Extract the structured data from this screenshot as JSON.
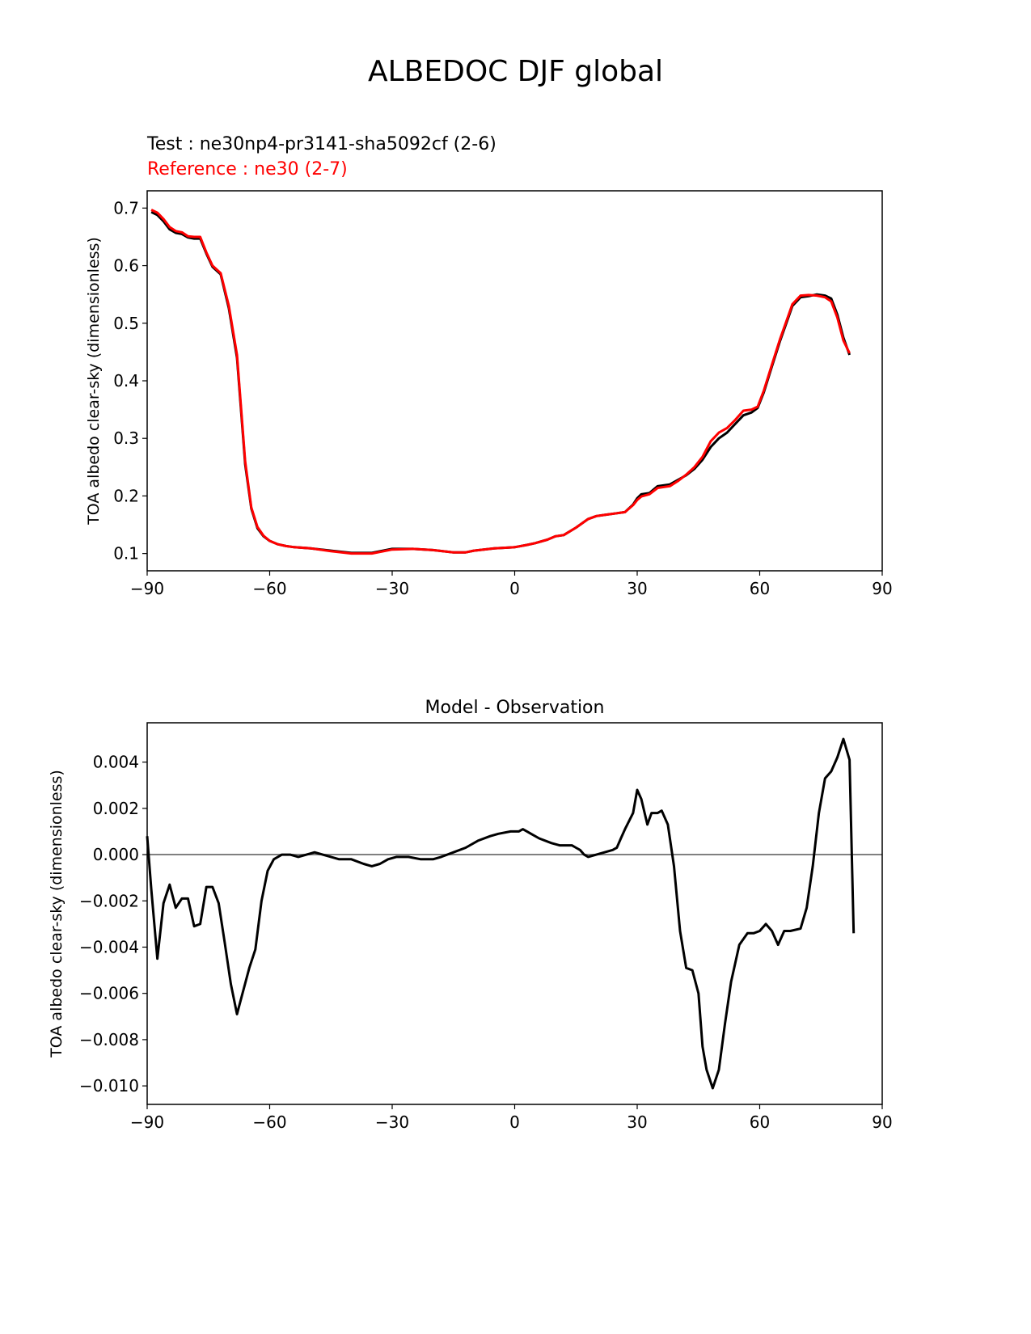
{
  "figure": {
    "title": "ALBEDOC DJF global",
    "test_label": "Test : ne30np4-pr3141-sha5092cf (2-6)",
    "reference_label": "Reference : ne30 (2-7)"
  },
  "colors": {
    "test": "#000000",
    "reference": "#ff0000",
    "zero_line": "#808080"
  },
  "chart_data": [
    {
      "type": "line",
      "title": "",
      "xlabel": "",
      "ylabel": "TOA albedo clear-sky (dimensionless)",
      "xlim": [
        -90,
        90
      ],
      "ylim": [
        0.07,
        0.73
      ],
      "xticks": [
        -90,
        -60,
        -30,
        0,
        30,
        60,
        90
      ],
      "xtick_labels": [
        "−90",
        "−60",
        "−30",
        "0",
        "30",
        "60",
        "90"
      ],
      "yticks": [
        0.1,
        0.2,
        0.3,
        0.4,
        0.5,
        0.6,
        0.7
      ],
      "ytick_labels": [
        "0.1",
        "0.2",
        "0.3",
        "0.4",
        "0.5",
        "0.6",
        "0.7"
      ],
      "series": [
        {
          "color": "#000000",
          "x": [
            -89,
            -87.5,
            -86,
            -84.5,
            -83,
            -81.5,
            -80,
            -78.5,
            -77,
            -75.5,
            -74,
            -72,
            -70,
            -68,
            -66,
            -64.5,
            -63,
            -61.5,
            -60,
            -58,
            -56,
            -54,
            -50,
            -45,
            -40,
            -35,
            -30,
            -25,
            -20,
            -15,
            -12,
            -10,
            -5,
            0,
            3,
            5,
            8,
            10,
            12,
            15,
            18,
            20,
            22,
            25,
            27,
            29,
            30,
            31,
            33,
            35,
            38,
            40,
            42,
            44,
            46,
            48,
            50,
            52,
            54,
            56,
            58,
            59.5,
            61,
            63,
            65,
            67,
            68,
            70,
            72,
            74,
            76,
            77.5,
            79,
            80.5,
            82
          ],
          "y": [
            0.693,
            0.688,
            0.677,
            0.663,
            0.657,
            0.655,
            0.649,
            0.647,
            0.647,
            0.621,
            0.598,
            0.585,
            0.526,
            0.44,
            0.255,
            0.178,
            0.144,
            0.13,
            0.122,
            0.116,
            0.113,
            0.111,
            0.109,
            0.105,
            0.101,
            0.101,
            0.108,
            0.108,
            0.106,
            0.102,
            0.102,
            0.105,
            0.109,
            0.111,
            0.115,
            0.118,
            0.124,
            0.13,
            0.132,
            0.145,
            0.16,
            0.165,
            0.167,
            0.17,
            0.172,
            0.185,
            0.196,
            0.203,
            0.205,
            0.217,
            0.22,
            0.228,
            0.236,
            0.247,
            0.263,
            0.285,
            0.3,
            0.31,
            0.325,
            0.34,
            0.345,
            0.353,
            0.38,
            0.425,
            0.47,
            0.51,
            0.53,
            0.545,
            0.547,
            0.55,
            0.548,
            0.543,
            0.515,
            0.475,
            0.445
          ]
        },
        {
          "color": "#ff0000",
          "x": [
            -89,
            -87.5,
            -86,
            -84.5,
            -83,
            -81.5,
            -80,
            -78.5,
            -77,
            -75.5,
            -74,
            -72,
            -70,
            -68,
            -66,
            -64.5,
            -63,
            -61.5,
            -60,
            -58,
            -56,
            -54,
            -50,
            -45,
            -40,
            -35,
            -30,
            -25,
            -20,
            -15,
            -12,
            -10,
            -5,
            0,
            3,
            5,
            8,
            10,
            12,
            15,
            18,
            20,
            22,
            25,
            27,
            29,
            30,
            31,
            33,
            35,
            38,
            40,
            42,
            44,
            46,
            48,
            50,
            52,
            54,
            56,
            58,
            59.5,
            61,
            63,
            65,
            67,
            68,
            70,
            72,
            74,
            76,
            77.5,
            79,
            80.5,
            82
          ],
          "y": [
            0.697,
            0.692,
            0.681,
            0.667,
            0.66,
            0.658,
            0.651,
            0.65,
            0.65,
            0.623,
            0.6,
            0.587,
            0.53,
            0.445,
            0.26,
            0.18,
            0.146,
            0.131,
            0.122,
            0.116,
            0.113,
            0.111,
            0.109,
            0.104,
            0.1,
            0.1,
            0.107,
            0.108,
            0.106,
            0.102,
            0.102,
            0.105,
            0.109,
            0.111,
            0.115,
            0.118,
            0.124,
            0.13,
            0.132,
            0.145,
            0.16,
            0.165,
            0.167,
            0.17,
            0.172,
            0.184,
            0.193,
            0.199,
            0.203,
            0.214,
            0.217,
            0.226,
            0.237,
            0.25,
            0.268,
            0.295,
            0.31,
            0.318,
            0.332,
            0.348,
            0.35,
            0.355,
            0.383,
            0.428,
            0.473,
            0.513,
            0.533,
            0.548,
            0.549,
            0.548,
            0.545,
            0.538,
            0.51,
            0.47,
            0.448
          ]
        }
      ]
    },
    {
      "type": "line",
      "title": "Model - Observation",
      "xlabel": "",
      "ylabel": "TOA albedo clear-sky (dimensionless)",
      "xlim": [
        -90,
        90
      ],
      "ylim": [
        -0.0108,
        0.0057
      ],
      "xticks": [
        -90,
        -60,
        -30,
        0,
        30,
        60,
        90
      ],
      "xtick_labels": [
        "−90",
        "−60",
        "−30",
        "0",
        "30",
        "60",
        "90"
      ],
      "yticks": [
        0.004,
        0.002,
        0.0,
        -0.002,
        -0.004,
        -0.006,
        -0.008,
        -0.01
      ],
      "ytick_labels": [
        "0.004",
        "0.002",
        "0.000",
        "−0.002",
        "−0.004",
        "−0.006",
        "−0.008",
        "−0.010"
      ],
      "reference_line_y": 0.0,
      "series": [
        {
          "color": "#000000",
          "x": [
            -90,
            -89,
            -87.5,
            -86,
            -84.5,
            -83,
            -81.5,
            -80,
            -78.5,
            -77,
            -75.5,
            -74,
            -72.5,
            -71,
            -69.5,
            -68,
            -66.5,
            -65,
            -63.5,
            -62,
            -60.5,
            -59,
            -57,
            -55,
            -53,
            -51,
            -49,
            -47,
            -45,
            -43,
            -40,
            -37,
            -35,
            -33,
            -31,
            -29,
            -26,
            -23,
            -20,
            -18,
            -15,
            -12,
            -9,
            -6,
            -4,
            -1,
            1,
            2,
            3,
            4,
            6,
            9,
            11,
            13,
            14,
            15,
            16,
            17,
            18,
            20,
            22,
            24,
            25,
            26,
            27,
            29,
            30,
            31,
            32.5,
            33.5,
            35,
            36,
            37.5,
            39,
            40.5,
            42,
            43.5,
            45,
            46,
            47,
            48.5,
            50,
            51.5,
            53,
            55,
            57,
            58.5,
            60,
            61.5,
            63,
            64.5,
            66,
            67.5,
            70,
            71.5,
            73,
            74.5,
            76,
            77.5,
            79,
            80.5,
            82,
            83
          ],
          "y": [
            0.0008,
            -0.0015,
            -0.0045,
            -0.0021,
            -0.0013,
            -0.0023,
            -0.0019,
            -0.0019,
            -0.0031,
            -0.003,
            -0.0014,
            -0.0014,
            -0.0021,
            -0.0038,
            -0.0056,
            -0.0069,
            -0.0059,
            -0.0049,
            -0.0041,
            -0.002,
            -0.0007,
            -0.0002,
            0.0,
            0.0,
            -0.0001,
            0.0,
            0.0001,
            0.0,
            -0.0001,
            -0.0002,
            -0.0002,
            -0.0004,
            -0.0005,
            -0.0004,
            -0.0002,
            -0.0001,
            -0.0001,
            -0.0002,
            -0.0002,
            -0.0001,
            0.0001,
            0.0003,
            0.0006,
            0.0008,
            0.0009,
            0.001,
            0.001,
            0.0011,
            0.001,
            0.0009,
            0.0007,
            0.0005,
            0.0004,
            0.0004,
            0.0004,
            0.0003,
            0.0002,
            0.0,
            -0.0001,
            0.0,
            0.0001,
            0.0002,
            0.0003,
            0.0007,
            0.0011,
            0.0018,
            0.0028,
            0.0024,
            0.0013,
            0.0018,
            0.0018,
            0.0019,
            0.0013,
            -0.0005,
            -0.0033,
            -0.0049,
            -0.005,
            -0.006,
            -0.0083,
            -0.0093,
            -0.0101,
            -0.0093,
            -0.0073,
            -0.0055,
            -0.0039,
            -0.0034,
            -0.0034,
            -0.0033,
            -0.003,
            -0.0033,
            -0.0039,
            -0.0033,
            -0.0033,
            -0.0032,
            -0.0023,
            -0.0005,
            0.0018,
            0.0033,
            0.0036,
            0.0042,
            0.005,
            0.0041,
            -0.0034
          ]
        }
      ]
    }
  ]
}
